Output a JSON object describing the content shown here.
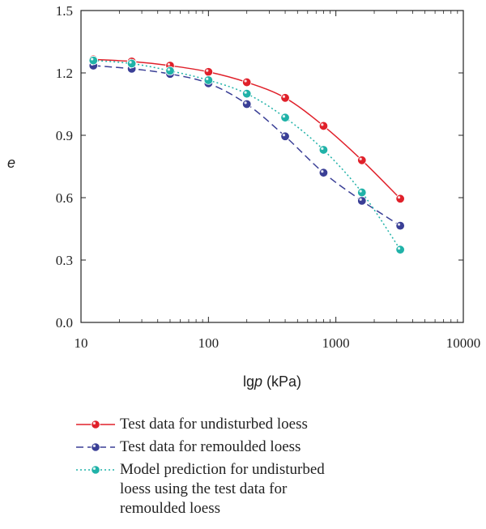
{
  "chart_data": {
    "type": "line",
    "x_scale": "log",
    "xlim": [
      10,
      10000
    ],
    "ylim": [
      0.0,
      1.5
    ],
    "xticks": [
      "10",
      "100",
      "1000",
      "10000"
    ],
    "yticks": [
      "0.0",
      "0.3",
      "0.6",
      "0.9",
      "1.2",
      "1.5"
    ],
    "xlabel_prefix": "lg",
    "xlabel_italic": "p",
    "xlabel_suffix": " (kPa)",
    "ylabel": "e",
    "series": [
      {
        "name": "Test data for undisturbed loess",
        "color": "#e0202a",
        "line_style": "solid",
        "x": [
          12.5,
          25,
          50,
          100,
          200,
          400,
          800,
          1600,
          3200
        ],
        "y": [
          1.265,
          1.255,
          1.235,
          1.205,
          1.155,
          1.08,
          0.945,
          0.78,
          0.595
        ]
      },
      {
        "name": "Test data for remoulded loess",
        "color": "#3a3f96",
        "line_style": "dashed",
        "x": [
          12.5,
          25,
          50,
          100,
          200,
          400,
          800,
          1600,
          3200
        ],
        "y": [
          1.235,
          1.22,
          1.195,
          1.15,
          1.05,
          0.895,
          0.72,
          0.585,
          0.465
        ]
      },
      {
        "name": "Model prediction for undisturbed loess using the test data for remoulded loess",
        "legend_lines": [
          "Model prediction for undisturbed",
          "loess using the test data for",
          "remoulded loess"
        ],
        "color": "#20b2a8",
        "line_style": "dotted",
        "x": [
          12.5,
          25,
          50,
          100,
          200,
          400,
          800,
          1600,
          3200
        ],
        "y": [
          1.26,
          1.245,
          1.21,
          1.165,
          1.1,
          0.985,
          0.83,
          0.625,
          0.35
        ]
      }
    ]
  }
}
